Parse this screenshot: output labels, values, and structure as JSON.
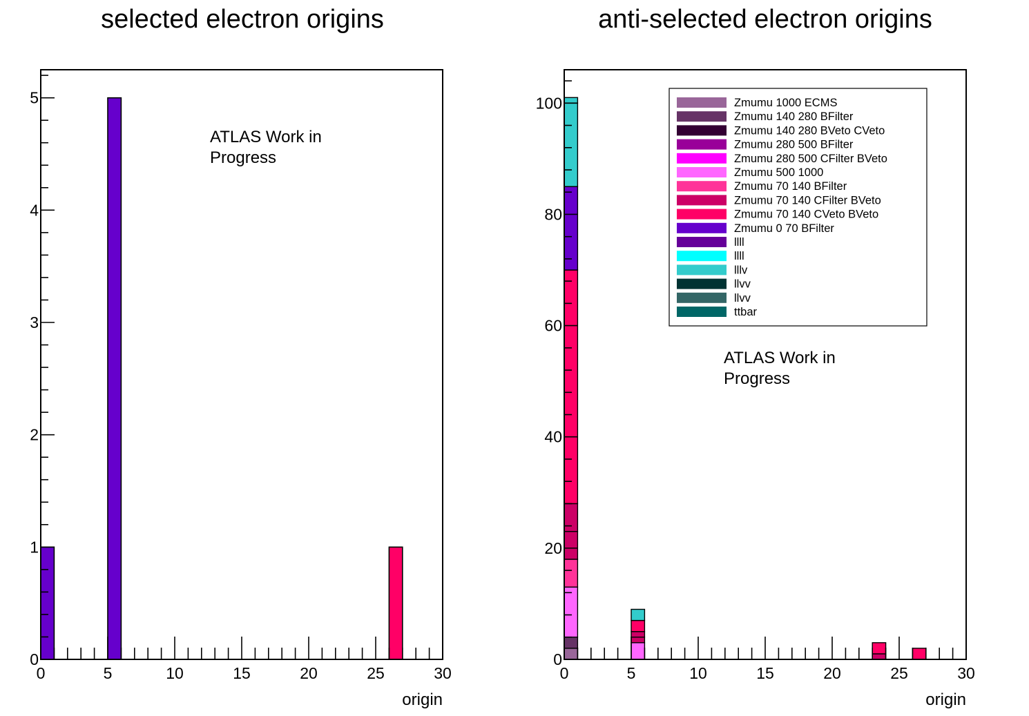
{
  "chart_data": [
    {
      "type": "bar",
      "title": "selected electron origins",
      "xlabel": "origin",
      "ylabel": "",
      "xlim": [
        0,
        30
      ],
      "ylim": [
        0,
        5.25
      ],
      "xticks": [
        0,
        5,
        10,
        15,
        20,
        25,
        30
      ],
      "yticks": [
        0,
        1,
        2,
        3,
        4,
        5
      ],
      "annotation": [
        "ATLAS Work in",
        "Progress"
      ],
      "bins": [
        {
          "x0": 0,
          "x1": 1,
          "value": 1,
          "color": "#6600CC"
        },
        {
          "x0": 5,
          "x1": 6,
          "value": 5,
          "color": "#6600CC"
        },
        {
          "x0": 26,
          "x1": 27,
          "value": 1,
          "color": "#FF0066"
        }
      ]
    },
    {
      "type": "bar",
      "stacked": true,
      "title": "anti-selected electron origins",
      "xlabel": "origin",
      "ylabel": "",
      "xlim": [
        0,
        30
      ],
      "ylim": [
        0,
        106
      ],
      "xticks": [
        0,
        5,
        10,
        15,
        20,
        25,
        30
      ],
      "yticks": [
        0,
        20,
        40,
        60,
        80,
        100
      ],
      "annotation": [
        "ATLAS Work in",
        "Progress"
      ],
      "legend": [
        {
          "name": "Zmumu 1000 ECMS",
          "color": "#996699"
        },
        {
          "name": "Zmumu 140 280 BFilter",
          "color": "#663366"
        },
        {
          "name": "Zmumu 140 280 BVeto CVeto",
          "color": "#330033"
        },
        {
          "name": "Zmumu 280 500 BFilter",
          "color": "#990099"
        },
        {
          "name": "Zmumu 280 500 CFilter BVeto",
          "color": "#FF00FF"
        },
        {
          "name": "Zmumu 500 1000",
          "color": "#FF66FF"
        },
        {
          "name": "Zmumu 70 140 BFilter",
          "color": "#FF3399"
        },
        {
          "name": "Zmumu 70 140 CFilter BVeto",
          "color": "#CC0066"
        },
        {
          "name": "Zmumu 70 140 CVeto BVeto",
          "color": "#FF0066"
        },
        {
          "name": "Zmumu 0 70 BFilter",
          "color": "#6600CC"
        },
        {
          "name": "llll",
          "color": "#660099"
        },
        {
          "name": "llll",
          "color": "#00FFFF"
        },
        {
          "name": "lllv",
          "color": "#33CCCC"
        },
        {
          "name": "llvv",
          "color": "#003333"
        },
        {
          "name": "llvv",
          "color": "#336666"
        },
        {
          "name": "ttbar",
          "color": "#006666"
        }
      ],
      "legend_position": "top-right",
      "stacks": [
        {
          "x0": 0,
          "x1": 1,
          "segments": [
            {
              "value": 2,
              "color": "#996699"
            },
            {
              "value": 2,
              "color": "#663366"
            },
            {
              "value": 9,
              "color": "#FF66FF"
            },
            {
              "value": 5,
              "color": "#FF3399"
            },
            {
              "value": 5,
              "color": "#CC0066"
            },
            {
              "value": 5,
              "color": "#CC0066"
            },
            {
              "value": 42,
              "color": "#FF0066"
            },
            {
              "value": 15,
              "color": "#6600CC"
            },
            {
              "value": 15,
              "color": "#33CCCC"
            },
            {
              "value": 1,
              "color": "#33CCCC"
            }
          ]
        },
        {
          "x0": 5,
          "x1": 6,
          "segments": [
            {
              "value": 3,
              "color": "#FF66FF"
            },
            {
              "value": 1,
              "color": "#CC0066"
            },
            {
              "value": 1,
              "color": "#CC0066"
            },
            {
              "value": 2,
              "color": "#FF0066"
            },
            {
              "value": 2,
              "color": "#33CCCC"
            }
          ]
        },
        {
          "x0": 23,
          "x1": 24,
          "segments": [
            {
              "value": 1,
              "color": "#CC0066"
            },
            {
              "value": 2,
              "color": "#FF0066"
            }
          ]
        },
        {
          "x0": 26,
          "x1": 27,
          "segments": [
            {
              "value": 2,
              "color": "#FF0066"
            }
          ]
        }
      ]
    }
  ]
}
